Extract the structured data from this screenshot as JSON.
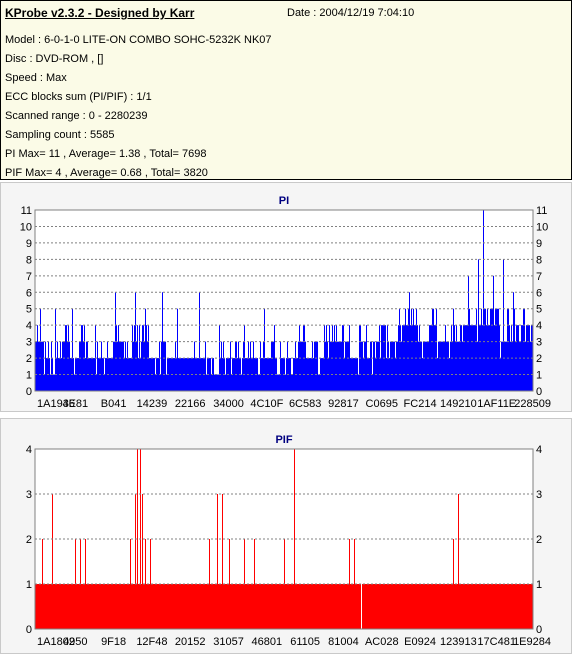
{
  "header": {
    "title": "KProbe v2.3.2 - Designed by Karr",
    "date": "Date : 2004/12/19 7:04:10",
    "lines": [
      "Model : 6-0-1-0 LITE-ON COMBO SOHC-5232K NK07",
      "Disc : DVD-ROM ,  []",
      "Speed : Max",
      "ECC blocks sum (PI/PIF) : 1/1",
      "Scanned range : 0 - 2280239",
      "Sampling count : 5585",
      "PI Max= 11 , Average= 1.38 , Total= 7698",
      "PIF Max= 4 , Average= 0.68 , Total= 3820"
    ]
  },
  "chart_data": [
    {
      "type": "bar",
      "title": "PI",
      "color": "#0000ff",
      "ylim": [
        0,
        11
      ],
      "yticks": [
        0,
        1,
        2,
        3,
        4,
        5,
        6,
        7,
        8,
        9,
        10,
        11
      ],
      "xtick_labels": [
        "1A1936",
        "4E81",
        "B041",
        "14239",
        "22166",
        "34000",
        "4C10F",
        "6C583",
        "92817",
        "C0695",
        "FC214",
        "149210",
        "1AF11E",
        "228509"
      ],
      "grid": "dashed horizontal",
      "baseline_values": [
        3,
        2,
        2,
        3,
        2,
        3,
        2,
        2,
        2,
        3,
        2,
        3,
        3,
        2,
        2,
        2,
        2,
        2,
        2,
        2,
        1,
        2,
        2,
        2,
        2,
        2,
        2,
        2,
        2,
        2,
        3,
        2,
        2,
        3,
        3,
        3,
        2,
        3,
        2,
        3,
        3,
        3,
        4,
        4,
        3,
        4,
        3,
        3,
        3,
        4,
        4,
        4,
        5,
        3,
        4,
        4,
        4
      ],
      "peaks": [
        {
          "x": 0.01,
          "v": 5
        },
        {
          "x": 0.04,
          "v": 5
        },
        {
          "x": 0.075,
          "v": 5
        },
        {
          "x": 0.12,
          "v": 4
        },
        {
          "x": 0.16,
          "v": 6
        },
        {
          "x": 0.2,
          "v": 6
        },
        {
          "x": 0.22,
          "v": 5
        },
        {
          "x": 0.255,
          "v": 6
        },
        {
          "x": 0.285,
          "v": 5
        },
        {
          "x": 0.33,
          "v": 6
        },
        {
          "x": 0.37,
          "v": 4
        },
        {
          "x": 0.42,
          "v": 4
        },
        {
          "x": 0.46,
          "v": 5
        },
        {
          "x": 0.48,
          "v": 4
        },
        {
          "x": 0.53,
          "v": 4
        },
        {
          "x": 0.56,
          "v": 3
        },
        {
          "x": 0.6,
          "v": 4
        },
        {
          "x": 0.65,
          "v": 4
        },
        {
          "x": 0.7,
          "v": 4
        },
        {
          "x": 0.73,
          "v": 5
        },
        {
          "x": 0.75,
          "v": 6
        },
        {
          "x": 0.8,
          "v": 5
        },
        {
          "x": 0.84,
          "v": 5
        },
        {
          "x": 0.87,
          "v": 7
        },
        {
          "x": 0.89,
          "v": 8
        },
        {
          "x": 0.9,
          "v": 11
        },
        {
          "x": 0.92,
          "v": 7
        },
        {
          "x": 0.94,
          "v": 8
        },
        {
          "x": 0.96,
          "v": 6
        },
        {
          "x": 0.98,
          "v": 5
        }
      ]
    },
    {
      "type": "bar",
      "title": "PIF",
      "color": "#ff0000",
      "ylim": [
        0,
        4
      ],
      "yticks": [
        0,
        1,
        2,
        3,
        4
      ],
      "xtick_labels": [
        "1A1802",
        "4950",
        "9F18",
        "12F48",
        "20152",
        "31057",
        "46801",
        "61105",
        "81004",
        "AC028",
        "E0924",
        "123913",
        "17C481",
        "1E9284"
      ],
      "grid": "dashed horizontal",
      "baseline": 1,
      "gap_at": 0.655,
      "peaks": [
        {
          "x": 0.015,
          "v": 2
        },
        {
          "x": 0.035,
          "v": 3
        },
        {
          "x": 0.08,
          "v": 2
        },
        {
          "x": 0.09,
          "v": 2
        },
        {
          "x": 0.1,
          "v": 2
        },
        {
          "x": 0.19,
          "v": 2
        },
        {
          "x": 0.2,
          "v": 3
        },
        {
          "x": 0.205,
          "v": 4
        },
        {
          "x": 0.21,
          "v": 4
        },
        {
          "x": 0.215,
          "v": 3
        },
        {
          "x": 0.22,
          "v": 2
        },
        {
          "x": 0.23,
          "v": 2
        },
        {
          "x": 0.35,
          "v": 2
        },
        {
          "x": 0.365,
          "v": 3
        },
        {
          "x": 0.375,
          "v": 3
        },
        {
          "x": 0.39,
          "v": 2
        },
        {
          "x": 0.42,
          "v": 2
        },
        {
          "x": 0.44,
          "v": 2
        },
        {
          "x": 0.5,
          "v": 2
        },
        {
          "x": 0.52,
          "v": 4
        },
        {
          "x": 0.63,
          "v": 2
        },
        {
          "x": 0.64,
          "v": 2
        },
        {
          "x": 0.84,
          "v": 2
        },
        {
          "x": 0.85,
          "v": 3
        }
      ]
    }
  ]
}
